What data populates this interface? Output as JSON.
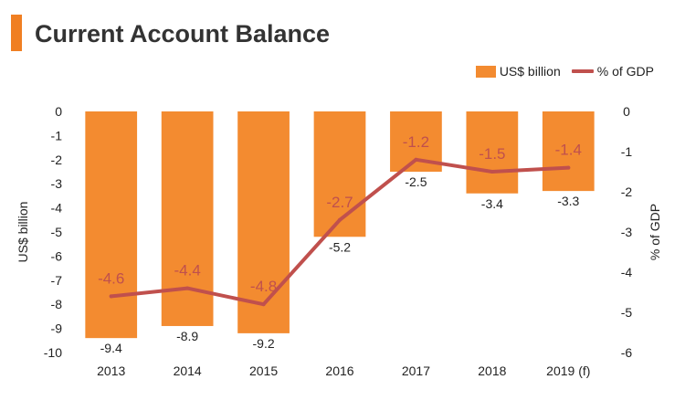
{
  "header": {
    "title": "Current Account Balance"
  },
  "legend": {
    "bar_label": "US$ billion",
    "line_label": "% of GDP"
  },
  "colors": {
    "bar": "#f38b30",
    "line": "#c0504d",
    "accent": "#f07f22"
  },
  "chart_data": {
    "type": "bar",
    "categories": [
      "2013",
      "2014",
      "2015",
      "2016",
      "2017",
      "2018",
      "2019 (f)"
    ],
    "series": [
      {
        "name": "US$ billion",
        "type": "bar",
        "axis": "left",
        "values": [
          -9.4,
          -8.9,
          -9.2,
          -5.2,
          -2.5,
          -3.4,
          -3.3
        ]
      },
      {
        "name": "% of GDP",
        "type": "line",
        "axis": "right",
        "values": [
          -4.6,
          -4.4,
          -4.8,
          -2.7,
          -1.2,
          -1.5,
          -1.4
        ]
      }
    ],
    "y_left": {
      "label": "US$ billion",
      "range": [
        -10,
        0
      ],
      "ticks": [
        0,
        -1,
        -2,
        -3,
        -4,
        -5,
        -6,
        -7,
        -8,
        -9,
        -10
      ]
    },
    "y_right": {
      "label": "% of GDP",
      "range": [
        -6,
        0
      ],
      "ticks": [
        0,
        -1,
        -2,
        -3,
        -4,
        -5,
        -6
      ]
    },
    "grid": false,
    "legend_position": "top-right"
  }
}
